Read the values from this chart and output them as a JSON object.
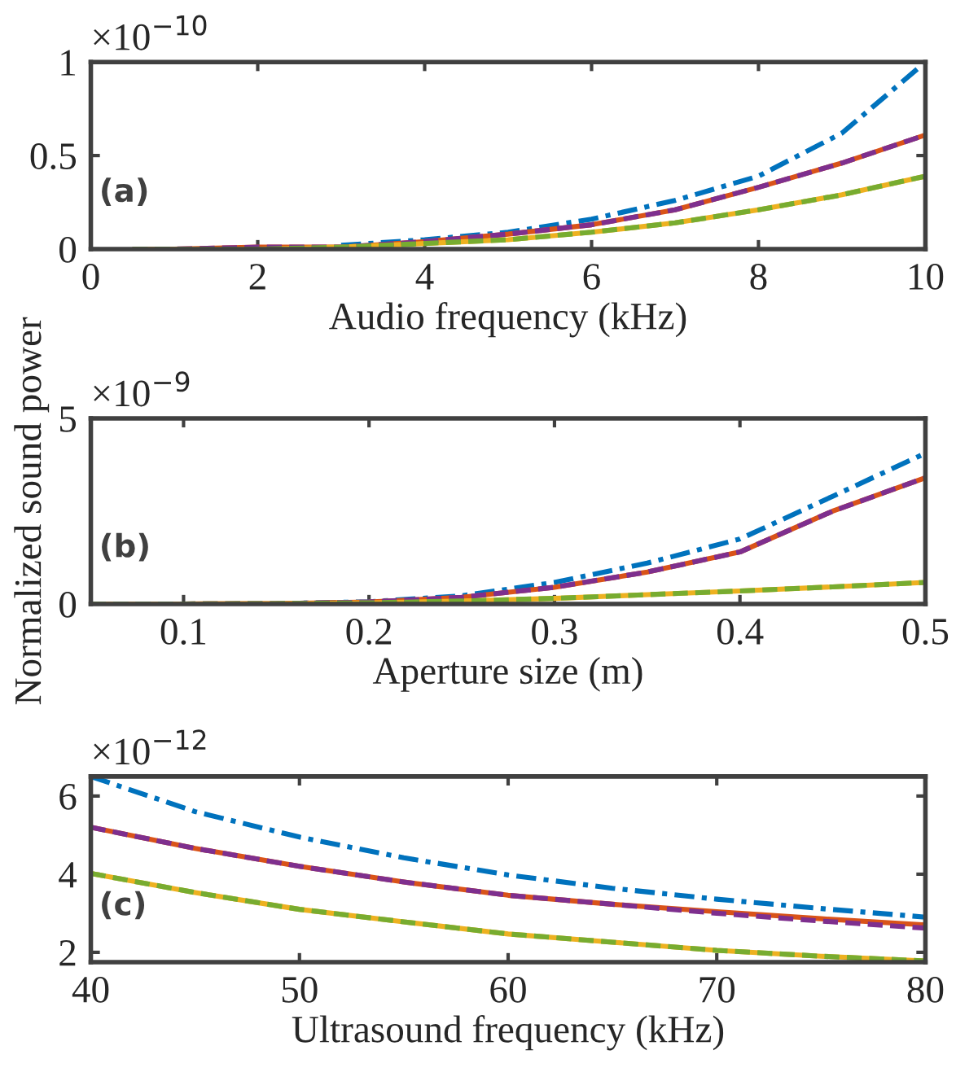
{
  "chart_data": [
    {
      "type": "line",
      "xlabel": "Audio frequency (kHz)",
      "x": [
        0.5,
        1,
        2,
        3,
        4,
        5,
        6,
        7,
        8,
        9,
        10
      ],
      "xlim": [
        0,
        10
      ],
      "xticks": [
        0,
        2,
        4,
        6,
        8,
        10
      ],
      "ylim": [
        0,
        1
      ],
      "yticks": [
        0,
        0.5,
        1
      ],
      "annotations": [
        "×10$^{−10}$",
        "(a)"
      ],
      "grid": false,
      "legend": false,
      "series": [
        {
          "color": "#0072bd",
          "line_style": "dashdot",
          "values": [
            null,
            null,
            null,
            0.02,
            0.05,
            0.09,
            0.16,
            0.26,
            0.39,
            0.62,
            1.0
          ]
        },
        {
          "color": "#d95319",
          "line_style": "solid",
          "values": [
            0,
            0,
            0.01,
            0.01,
            0.04,
            0.08,
            0.13,
            0.21,
            0.33,
            0.46,
            0.61
          ]
        },
        {
          "color": "#edb120",
          "line_style": "solid",
          "values": [
            0,
            0,
            0,
            0.01,
            0.03,
            0.05,
            0.09,
            0.14,
            0.21,
            0.29,
            0.39
          ]
        },
        {
          "color": "#7e2f8e",
          "line_style": "dashed",
          "values": [
            0,
            0,
            0.01,
            0.01,
            0.04,
            0.08,
            0.13,
            0.21,
            0.33,
            0.46,
            0.61
          ]
        },
        {
          "color": "#77ac30",
          "line_style": "dashed",
          "values": [
            0,
            0,
            0,
            0.01,
            0.03,
            0.05,
            0.09,
            0.14,
            0.21,
            0.29,
            0.39
          ]
        }
      ]
    },
    {
      "type": "line",
      "xlabel": "Aperture size (m)",
      "ylabel": "Normalized sound power",
      "x": [
        0.05,
        0.1,
        0.15,
        0.2,
        0.25,
        0.3,
        0.35,
        0.4,
        0.45,
        0.5
      ],
      "xlim": [
        0.05,
        0.5
      ],
      "xticks": [
        0.1,
        0.2,
        0.3,
        0.4,
        0.5
      ],
      "ylim": [
        0,
        5
      ],
      "yticks": [
        0,
        5
      ],
      "annotations": [
        "×10$^{−9}$",
        "(b)"
      ],
      "grid": false,
      "legend": false,
      "series": [
        {
          "color": "#0072bd",
          "line_style": "dashdot",
          "values": [
            null,
            null,
            0.01,
            0.06,
            0.22,
            0.58,
            1.1,
            1.75,
            2.9,
            4.06
          ]
        },
        {
          "color": "#d95319",
          "line_style": "solid",
          "values": [
            0,
            0,
            0.01,
            0.05,
            0.18,
            0.45,
            0.86,
            1.4,
            2.5,
            3.4
          ]
        },
        {
          "color": "#edb120",
          "line_style": "solid",
          "values": [
            0,
            0,
            0.01,
            0.03,
            0.08,
            0.15,
            0.25,
            0.35,
            0.46,
            0.58
          ]
        },
        {
          "color": "#7e2f8e",
          "line_style": "dashed",
          "values": [
            0,
            0,
            0.01,
            0.05,
            0.18,
            0.45,
            0.86,
            1.4,
            2.5,
            3.4
          ]
        },
        {
          "color": "#77ac30",
          "line_style": "dashed",
          "values": [
            0,
            0,
            0.01,
            0.03,
            0.08,
            0.15,
            0.25,
            0.35,
            0.46,
            0.58
          ]
        }
      ]
    },
    {
      "type": "line",
      "xlabel": "Ultrasound frequency (kHz)",
      "x": [
        40,
        45,
        50,
        55,
        60,
        65,
        70,
        75,
        80
      ],
      "xlim": [
        40,
        80
      ],
      "xticks": [
        40,
        50,
        60,
        70,
        80
      ],
      "ylim": [
        1.75,
        6.5
      ],
      "yticks": [
        2,
        4,
        6
      ],
      "annotations": [
        "×10$^{−12}$",
        "(c)"
      ],
      "grid": false,
      "legend": false,
      "series": [
        {
          "color": "#0072bd",
          "line_style": "dashdot",
          "values": [
            6.5,
            5.6,
            4.95,
            4.42,
            3.98,
            3.64,
            3.36,
            3.12,
            2.9
          ]
        },
        {
          "color": "#d95319",
          "line_style": "solid",
          "values": [
            5.2,
            4.66,
            4.2,
            3.8,
            3.46,
            3.23,
            3.04,
            2.86,
            2.7
          ]
        },
        {
          "color": "#edb120",
          "line_style": "solid",
          "values": [
            4.02,
            3.53,
            3.1,
            2.78,
            2.47,
            2.26,
            2.05,
            1.9,
            1.78
          ]
        },
        {
          "color": "#7e2f8e",
          "line_style": "dashed",
          "values": [
            5.2,
            4.66,
            4.2,
            3.8,
            3.46,
            3.23,
            3.0,
            2.8,
            2.62
          ]
        },
        {
          "color": "#77ac30",
          "line_style": "dashed",
          "values": [
            4.02,
            3.53,
            3.1,
            2.78,
            2.47,
            2.26,
            2.05,
            1.9,
            1.78
          ]
        }
      ]
    }
  ]
}
